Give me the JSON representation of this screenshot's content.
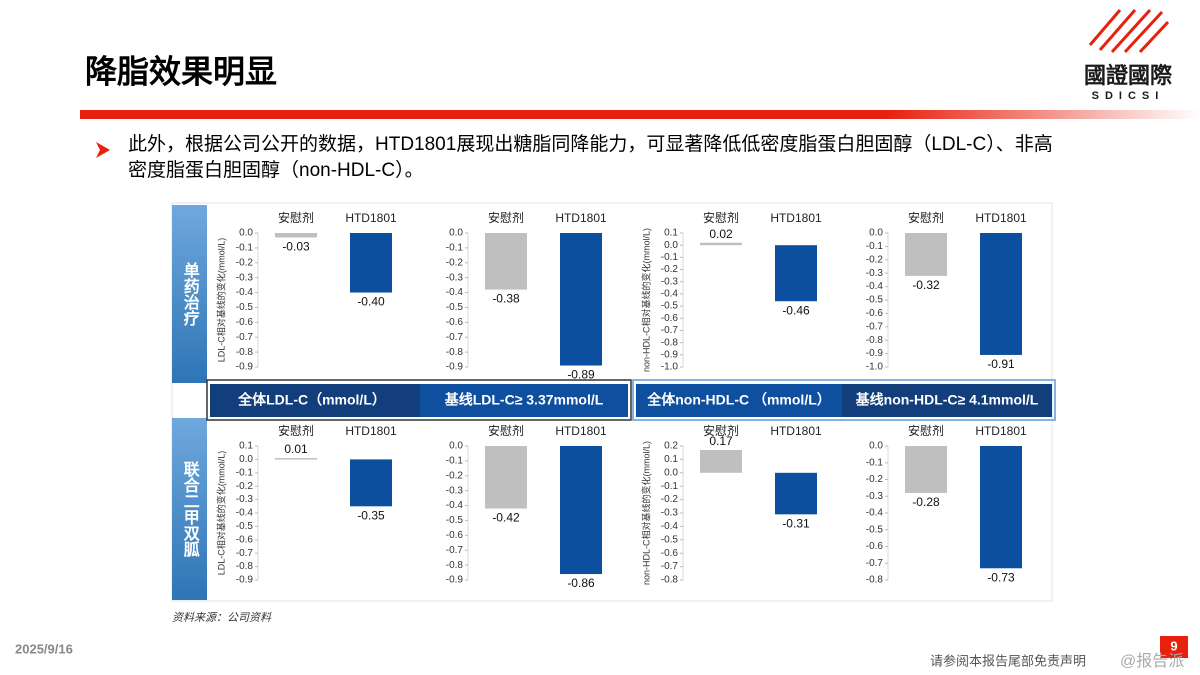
{
  "header": {
    "title": "降脂效果明显",
    "logo_name": "國證國際",
    "logo_abbr": "SDICSI"
  },
  "bullet": "此外，根据公司公开的数据，HTD1801展现出糖脂同降能力，可显著降低低密度脂蛋白胆固醇（LDL-C）、非高密度脂蛋白胆固醇（non-HDL-C）。",
  "figure": {
    "row_labels": [
      "单药治疗",
      "联合二甲双胍"
    ],
    "column_headers": [
      "全体LDL-C（mmol/L）",
      "基线LDL-C≥ 3.37mmol/L",
      "全体non-HDL-C （mmol/L）",
      "基线non-HDL-C≥ 4.1mmol/L"
    ],
    "source": "资料来源：公司资料"
  },
  "chart_data": [
    {
      "type": "bar",
      "y_label": "LDL-C相对基线的变化(mmol/L)",
      "categories": [
        "安慰剂",
        "HTD1801"
      ],
      "values": [
        -0.03,
        -0.4
      ],
      "value_labels": [
        "-0.03",
        "-0.40"
      ],
      "colors": [
        "#bfbfbf",
        "#0b4f9e"
      ],
      "ylim": [
        -0.9,
        0
      ],
      "yticks": [
        {
          "value": 0,
          "label": "0.0"
        },
        -0.1,
        -0.2,
        -0.3,
        -0.4,
        -0.5,
        -0.6,
        -0.7,
        -0.8,
        -0.9
      ]
    },
    {
      "type": "bar",
      "categories": [
        "安慰剂",
        "HTD1801"
      ],
      "values": [
        -0.38,
        -0.89
      ],
      "value_labels": [
        "-0.38",
        "-0.89"
      ],
      "colors": [
        "#bfbfbf",
        "#0b4f9e"
      ],
      "ylim": [
        -0.9,
        0
      ],
      "yticks": [
        {
          "value": 0,
          "label": "0.0"
        },
        -0.1,
        -0.2,
        -0.3,
        -0.4,
        -0.5,
        -0.6,
        -0.7,
        -0.8,
        -0.9
      ]
    },
    {
      "type": "bar",
      "y_label": "non-HDL-C相对基线的变化(mmol/L)",
      "categories": [
        "安慰剂",
        "HTD1801"
      ],
      "values": [
        0.02,
        -0.46
      ],
      "value_labels": [
        "0.02",
        "-0.46"
      ],
      "colors": [
        "#bfbfbf",
        "#0b4f9e"
      ],
      "ylim": [
        -1.0,
        0.1
      ],
      "yticks": [
        0.1,
        {
          "value": 0,
          "label": "0.0"
        },
        -0.1,
        -0.2,
        -0.3,
        -0.4,
        -0.5,
        -0.6,
        -0.7,
        -0.8,
        -0.9,
        {
          "value": -1,
          "label": "-1.0"
        }
      ]
    },
    {
      "type": "bar",
      "categories": [
        "安慰剂",
        "HTD1801"
      ],
      "values": [
        -0.32,
        -0.91
      ],
      "value_labels": [
        "-0.32",
        "-0.91"
      ],
      "colors": [
        "#bfbfbf",
        "#0b4f9e"
      ],
      "ylim": [
        -1.0,
        0
      ],
      "yticks": [
        {
          "value": 0,
          "label": "0.0"
        },
        -0.1,
        -0.2,
        -0.3,
        -0.4,
        -0.5,
        -0.6,
        -0.7,
        -0.8,
        -0.9,
        {
          "value": -1,
          "label": "-1.0"
        }
      ]
    },
    {
      "type": "bar",
      "y_label": "LDL-C相对基线的变化(mmol/L)",
      "categories": [
        "安慰剂",
        "HTD1801"
      ],
      "values": [
        0.01,
        -0.35
      ],
      "value_labels": [
        "0.01",
        "-0.35"
      ],
      "colors": [
        "#bfbfbf",
        "#0b4f9e"
      ],
      "ylim": [
        -0.9,
        0.1
      ],
      "yticks": [
        0.1,
        {
          "value": 0,
          "label": "0.0"
        },
        -0.1,
        -0.2,
        -0.3,
        -0.4,
        -0.5,
        -0.6,
        -0.7,
        -0.8,
        -0.9
      ]
    },
    {
      "type": "bar",
      "categories": [
        "安慰剂",
        "HTD1801"
      ],
      "values": [
        -0.42,
        -0.86
      ],
      "value_labels": [
        "-0.42",
        "-0.86"
      ],
      "colors": [
        "#bfbfbf",
        "#0b4f9e"
      ],
      "ylim": [
        -0.9,
        0
      ],
      "yticks": [
        {
          "value": 0,
          "label": "0.0"
        },
        -0.1,
        -0.2,
        -0.3,
        -0.4,
        -0.5,
        -0.6,
        -0.7,
        -0.8,
        -0.9
      ]
    },
    {
      "type": "bar",
      "y_label": "non-HDL-C相对基线的变化(mmol/L)",
      "categories": [
        "安慰剂",
        "HTD1801"
      ],
      "values": [
        0.17,
        -0.31
      ],
      "value_labels": [
        "0.17",
        "-0.31"
      ],
      "colors": [
        "#bfbfbf",
        "#0b4f9e"
      ],
      "ylim": [
        -0.8,
        0.2
      ],
      "yticks": [
        0.2,
        0.1,
        {
          "value": 0,
          "label": "0.0"
        },
        -0.1,
        -0.2,
        -0.3,
        -0.4,
        -0.5,
        -0.6,
        -0.7,
        -0.8
      ]
    },
    {
      "type": "bar",
      "categories": [
        "安慰剂",
        "HTD1801"
      ],
      "values": [
        -0.28,
        -0.73
      ],
      "value_labels": [
        "-0.28",
        "-0.73"
      ],
      "colors": [
        "#bfbfbf",
        "#0b4f9e"
      ],
      "ylim": [
        -0.8,
        0
      ],
      "yticks": [
        {
          "value": 0,
          "label": "0.0"
        },
        -0.1,
        -0.2,
        -0.3,
        -0.4,
        -0.5,
        -0.6,
        -0.7,
        -0.8
      ]
    }
  ],
  "footer": {
    "date": "2025/9/16",
    "page": "9",
    "disclaimer": "请参阅本报告尾部免责声明",
    "watermark": "@报告派"
  }
}
